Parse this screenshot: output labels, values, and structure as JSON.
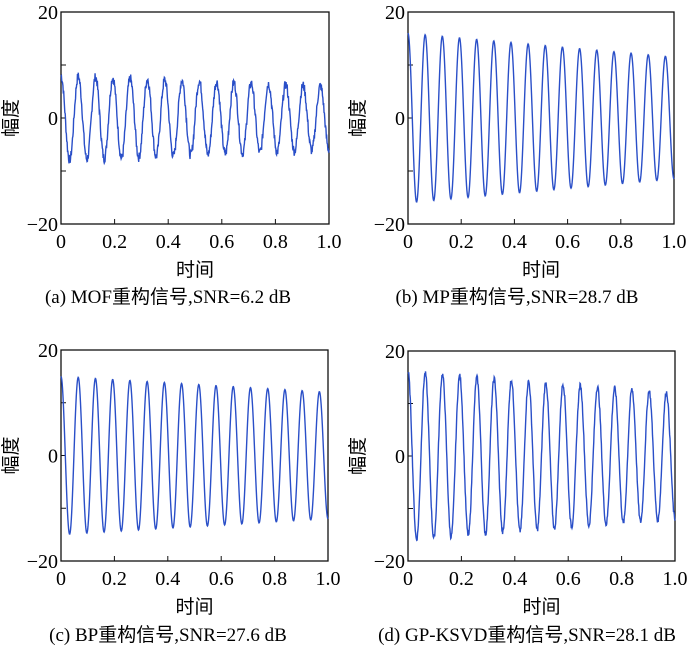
{
  "line_color": "#2a4fc8",
  "chart_data": [
    {
      "type": "line",
      "id": "a",
      "caption": "(a) MOF重构信号,SNR=6.2 dB",
      "xlabel": "时间",
      "ylabel": "幅度",
      "xlim": [
        0,
        1.0
      ],
      "ylim": [
        -20,
        20
      ],
      "xticks": [
        "0",
        "0.2",
        "0.4",
        "0.6",
        "0.8",
        "1.0"
      ],
      "yticks": [
        "-20",
        "0",
        "20"
      ],
      "cycles": 15.5,
      "amp_start": 8,
      "amp_end": 6,
      "noise": 0.9
    },
    {
      "type": "line",
      "id": "b",
      "caption": "(b) MP重构信号,SNR=28.7 dB",
      "xlabel": "时间",
      "ylabel": "幅度",
      "xlim": [
        0,
        1.0
      ],
      "ylim": [
        -20,
        20
      ],
      "xticks": [
        "0",
        "0.2",
        "0.4",
        "0.6",
        "0.8",
        "1.0"
      ],
      "yticks": [
        "-20",
        "0",
        "20"
      ],
      "cycles": 15.5,
      "amp_start": 16,
      "amp_end": 11.5,
      "noise": 0
    },
    {
      "type": "line",
      "id": "c",
      "caption": "(c) BP重构信号,SNR=27.6 dB",
      "xlabel": "时间",
      "ylabel": "幅度",
      "xlim": [
        0,
        1.0
      ],
      "ylim": [
        -20,
        20
      ],
      "xticks": [
        "0",
        "0.2",
        "0.4",
        "0.6",
        "0.8",
        "1.0"
      ],
      "yticks": [
        "-20",
        "0",
        "20"
      ],
      "cycles": 15.5,
      "amp_start": 15,
      "amp_end": 12,
      "noise": 0
    },
    {
      "type": "line",
      "id": "d",
      "caption": "(d) GP-KSVD重构信号,SNR=28.1 dB",
      "xlabel": "时间",
      "ylabel": "幅度",
      "xlim": [
        0,
        1.0
      ],
      "ylim": [
        -20,
        20
      ],
      "xticks": [
        "0",
        "0.2",
        "0.4",
        "0.6",
        "0.8",
        "1.0"
      ],
      "yticks": [
        "-20",
        "0",
        "20"
      ],
      "cycles": 15.5,
      "amp_start": 16,
      "amp_end": 12,
      "noise": 0.5
    }
  ]
}
